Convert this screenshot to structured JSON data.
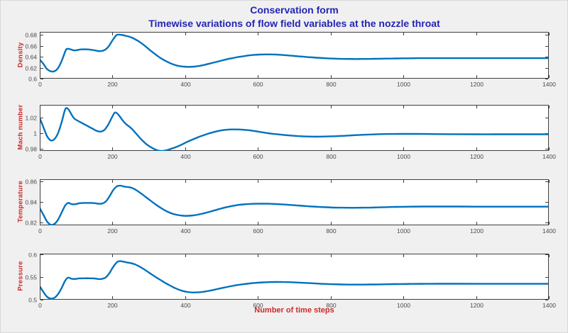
{
  "figure": {
    "title": "Conservation form",
    "subtitle": "Timewise variations of flow field variables at the nozzle throat",
    "xlabel": "Number of time steps",
    "colors": {
      "background": "#f0f0f0",
      "plot_background": "#ffffff",
      "axis": "#3f3f3f",
      "tick_label": "#4a4a4a",
      "line": "#0072bd",
      "title": "#2424b4",
      "label": "#cc2929"
    }
  },
  "chart_data": [
    {
      "type": "line",
      "ylabel": "Density",
      "x_ticks": [
        0,
        200,
        400,
        600,
        800,
        1000,
        1200,
        1400
      ],
      "y_ticks": [
        0.6,
        0.62,
        0.64,
        0.66,
        0.68
      ],
      "y_tick_labels": [
        "0.6",
        "0.62",
        "0.64",
        "0.66",
        "0.68"
      ],
      "xlim": [
        0,
        1400
      ],
      "ylim": [
        0.6,
        0.6855
      ],
      "points": [
        [
          0,
          0.635
        ],
        [
          10,
          0.627
        ],
        [
          20,
          0.6175
        ],
        [
          30,
          0.6135
        ],
        [
          40,
          0.6135
        ],
        [
          50,
          0.619
        ],
        [
          60,
          0.632
        ],
        [
          70,
          0.6495
        ],
        [
          75,
          0.6545
        ],
        [
          85,
          0.6535
        ],
        [
          95,
          0.6515
        ],
        [
          105,
          0.6525
        ],
        [
          115,
          0.6535
        ],
        [
          130,
          0.6535
        ],
        [
          145,
          0.6525
        ],
        [
          160,
          0.6505
        ],
        [
          170,
          0.6505
        ],
        [
          180,
          0.653
        ],
        [
          190,
          0.6595
        ],
        [
          200,
          0.67
        ],
        [
          210,
          0.679
        ],
        [
          215,
          0.6805
        ],
        [
          225,
          0.68
        ],
        [
          235,
          0.6785
        ],
        [
          245,
          0.677
        ],
        [
          255,
          0.6745
        ],
        [
          265,
          0.671
        ],
        [
          275,
          0.667
        ],
        [
          290,
          0.6595
        ],
        [
          305,
          0.651
        ],
        [
          320,
          0.6435
        ],
        [
          335,
          0.6365
        ],
        [
          350,
          0.631
        ],
        [
          365,
          0.6265
        ],
        [
          380,
          0.6235
        ],
        [
          395,
          0.622
        ],
        [
          410,
          0.6215
        ],
        [
          425,
          0.622
        ],
        [
          440,
          0.6235
        ],
        [
          455,
          0.6255
        ],
        [
          470,
          0.628
        ],
        [
          485,
          0.6305
        ],
        [
          500,
          0.633
        ],
        [
          515,
          0.6355
        ],
        [
          530,
          0.6375
        ],
        [
          545,
          0.6395
        ],
        [
          560,
          0.641
        ],
        [
          575,
          0.6425
        ],
        [
          590,
          0.6435
        ],
        [
          605,
          0.644
        ],
        [
          620,
          0.6443
        ],
        [
          635,
          0.6443
        ],
        [
          650,
          0.644
        ],
        [
          670,
          0.6432
        ],
        [
          690,
          0.642
        ],
        [
          710,
          0.641
        ],
        [
          730,
          0.6398
        ],
        [
          750,
          0.6388
        ],
        [
          770,
          0.638
        ],
        [
          790,
          0.6372
        ],
        [
          810,
          0.6366
        ],
        [
          830,
          0.6362
        ],
        [
          850,
          0.636
        ],
        [
          870,
          0.6359
        ],
        [
          890,
          0.636
        ],
        [
          910,
          0.6362
        ],
        [
          930,
          0.6364
        ],
        [
          950,
          0.6366
        ],
        [
          970,
          0.6368
        ],
        [
          990,
          0.637
        ],
        [
          1010,
          0.6372
        ],
        [
          1040,
          0.6374
        ],
        [
          1070,
          0.6375
        ],
        [
          1100,
          0.6375
        ],
        [
          1150,
          0.6375
        ],
        [
          1200,
          0.6374
        ],
        [
          1250,
          0.6374
        ],
        [
          1300,
          0.6374
        ],
        [
          1350,
          0.6374
        ],
        [
          1400,
          0.6374
        ]
      ]
    },
    {
      "type": "line",
      "ylabel": "Mach number",
      "x_ticks": [
        0,
        200,
        400,
        600,
        800,
        1000,
        1200,
        1400
      ],
      "y_ticks": [
        0.98,
        1,
        1.02
      ],
      "y_tick_labels": [
        "0.98",
        "1",
        "1.02"
      ],
      "xlim": [
        0,
        1400
      ],
      "ylim": [
        0.9775,
        1.0365
      ],
      "points": [
        [
          0,
          1.0195
        ],
        [
          10,
          1.008
        ],
        [
          20,
          0.9965
        ],
        [
          30,
          0.991
        ],
        [
          40,
          0.9925
        ],
        [
          50,
          1.0
        ],
        [
          60,
          1.014
        ],
        [
          68,
          1.028
        ],
        [
          73,
          1.0325
        ],
        [
          80,
          1.03
        ],
        [
          88,
          1.0235
        ],
        [
          95,
          1.019
        ],
        [
          105,
          1.016
        ],
        [
          115,
          1.0135
        ],
        [
          125,
          1.011
        ],
        [
          135,
          1.0085
        ],
        [
          145,
          1.006
        ],
        [
          155,
          1.0035
        ],
        [
          162,
          1.0025
        ],
        [
          170,
          1.0025
        ],
        [
          178,
          1.0045
        ],
        [
          188,
          1.011
        ],
        [
          198,
          1.02
        ],
        [
          205,
          1.026
        ],
        [
          210,
          1.0265
        ],
        [
          218,
          1.023
        ],
        [
          228,
          1.0165
        ],
        [
          238,
          1.0115
        ],
        [
          248,
          1.008
        ],
        [
          258,
          1.0035
        ],
        [
          270,
          0.997
        ],
        [
          282,
          0.991
        ],
        [
          295,
          0.9855
        ],
        [
          310,
          0.981
        ],
        [
          322,
          0.9785
        ],
        [
          332,
          0.9775
        ],
        [
          345,
          0.978
        ],
        [
          360,
          0.98
        ],
        [
          375,
          0.9825
        ],
        [
          390,
          0.9855
        ],
        [
          405,
          0.989
        ],
        [
          420,
          0.992
        ],
        [
          435,
          0.995
        ],
        [
          450,
          0.9975
        ],
        [
          465,
          0.9998
        ],
        [
          480,
          1.0018
        ],
        [
          495,
          1.0035
        ],
        [
          510,
          1.0045
        ],
        [
          525,
          1.005
        ],
        [
          540,
          1.005
        ],
        [
          555,
          1.0048
        ],
        [
          570,
          1.0042
        ],
        [
          590,
          1.003
        ],
        [
          610,
          1.0015
        ],
        [
          630,
          1.0
        ],
        [
          650,
          0.999
        ],
        [
          670,
          0.998
        ],
        [
          690,
          0.9972
        ],
        [
          710,
          0.9965
        ],
        [
          730,
          0.996
        ],
        [
          750,
          0.9958
        ],
        [
          770,
          0.9958
        ],
        [
          790,
          0.996
        ],
        [
          810,
          0.9963
        ],
        [
          830,
          0.9967
        ],
        [
          850,
          0.9972
        ],
        [
          870,
          0.9977
        ],
        [
          890,
          0.9982
        ],
        [
          910,
          0.9986
        ],
        [
          930,
          0.9989
        ],
        [
          950,
          0.9991
        ],
        [
          970,
          0.9992
        ],
        [
          990,
          0.9993
        ],
        [
          1020,
          0.9993
        ],
        [
          1060,
          0.9992
        ],
        [
          1100,
          0.999
        ],
        [
          1150,
          0.9989
        ],
        [
          1200,
          0.9988
        ],
        [
          1250,
          0.9988
        ],
        [
          1300,
          0.9988
        ],
        [
          1350,
          0.9988
        ],
        [
          1400,
          0.9988
        ]
      ]
    },
    {
      "type": "line",
      "ylabel": "Temperature",
      "x_ticks": [
        0,
        200,
        400,
        600,
        800,
        1000,
        1200,
        1400
      ],
      "y_ticks": [
        0.82,
        0.84,
        0.86
      ],
      "y_tick_labels": [
        "0.82",
        "0.84",
        "0.86"
      ],
      "xlim": [
        0,
        1400
      ],
      "ylim": [
        0.8172,
        0.8621
      ],
      "points": [
        [
          0,
          0.834
        ],
        [
          10,
          0.8275
        ],
        [
          20,
          0.821
        ],
        [
          30,
          0.8177
        ],
        [
          40,
          0.8185
        ],
        [
          50,
          0.8225
        ],
        [
          60,
          0.8295
        ],
        [
          70,
          0.8365
        ],
        [
          78,
          0.839
        ],
        [
          88,
          0.8378
        ],
        [
          98,
          0.8378
        ],
        [
          108,
          0.8387
        ],
        [
          120,
          0.839
        ],
        [
          135,
          0.839
        ],
        [
          150,
          0.8388
        ],
        [
          162,
          0.8382
        ],
        [
          172,
          0.8385
        ],
        [
          182,
          0.8405
        ],
        [
          192,
          0.8455
        ],
        [
          202,
          0.8515
        ],
        [
          212,
          0.8552
        ],
        [
          222,
          0.8558
        ],
        [
          232,
          0.855
        ],
        [
          242,
          0.8545
        ],
        [
          252,
          0.8538
        ],
        [
          262,
          0.8522
        ],
        [
          275,
          0.8492
        ],
        [
          290,
          0.8452
        ],
        [
          305,
          0.8412
        ],
        [
          320,
          0.8372
        ],
        [
          335,
          0.8337
        ],
        [
          350,
          0.8307
        ],
        [
          365,
          0.8285
        ],
        [
          380,
          0.8272
        ],
        [
          395,
          0.8265
        ],
        [
          410,
          0.8265
        ],
        [
          425,
          0.827
        ],
        [
          440,
          0.828
        ],
        [
          455,
          0.8292
        ],
        [
          470,
          0.8307
        ],
        [
          485,
          0.8322
        ],
        [
          500,
          0.8337
        ],
        [
          515,
          0.835
        ],
        [
          530,
          0.8361
        ],
        [
          545,
          0.837
        ],
        [
          560,
          0.8376
        ],
        [
          575,
          0.838
        ],
        [
          590,
          0.8382
        ],
        [
          610,
          0.8383
        ],
        [
          630,
          0.8382
        ],
        [
          650,
          0.8379
        ],
        [
          670,
          0.8375
        ],
        [
          690,
          0.837
        ],
        [
          710,
          0.8365
        ],
        [
          730,
          0.836
        ],
        [
          750,
          0.8355
        ],
        [
          770,
          0.8351
        ],
        [
          790,
          0.8348
        ],
        [
          810,
          0.8345
        ],
        [
          830,
          0.8344
        ],
        [
          850,
          0.8343
        ],
        [
          870,
          0.8343
        ],
        [
          890,
          0.8344
        ],
        [
          910,
          0.8345
        ],
        [
          930,
          0.8347
        ],
        [
          950,
          0.8349
        ],
        [
          970,
          0.8351
        ],
        [
          990,
          0.8352
        ],
        [
          1020,
          0.8354
        ],
        [
          1060,
          0.8355
        ],
        [
          1100,
          0.8355
        ],
        [
          1150,
          0.8355
        ],
        [
          1200,
          0.8354
        ],
        [
          1250,
          0.8354
        ],
        [
          1300,
          0.8354
        ],
        [
          1350,
          0.8354
        ],
        [
          1400,
          0.8354
        ]
      ]
    },
    {
      "type": "line",
      "ylabel": "Pressure",
      "x_ticks": [
        0,
        200,
        400,
        600,
        800,
        1000,
        1200,
        1400
      ],
      "y_ticks": [
        0.5,
        0.55,
        0.6
      ],
      "y_tick_labels": [
        "0.5",
        "0.55",
        "0.6"
      ],
      "xlim": [
        0,
        1400
      ],
      "ylim": [
        0.5,
        0.6015
      ],
      "points": [
        [
          0,
          0.5295
        ],
        [
          10,
          0.517
        ],
        [
          20,
          0.5065
        ],
        [
          30,
          0.5025
        ],
        [
          40,
          0.504
        ],
        [
          50,
          0.512
        ],
        [
          60,
          0.5255
        ],
        [
          70,
          0.542
        ],
        [
          78,
          0.5485
        ],
        [
          88,
          0.546
        ],
        [
          98,
          0.5458
        ],
        [
          108,
          0.547
        ],
        [
          120,
          0.5472
        ],
        [
          135,
          0.5472
        ],
        [
          150,
          0.5468
        ],
        [
          162,
          0.5455
        ],
        [
          172,
          0.546
        ],
        [
          182,
          0.5495
        ],
        [
          192,
          0.559
        ],
        [
          202,
          0.5725
        ],
        [
          212,
          0.5825
        ],
        [
          220,
          0.585
        ],
        [
          230,
          0.5838
        ],
        [
          240,
          0.5822
        ],
        [
          250,
          0.5808
        ],
        [
          260,
          0.5785
        ],
        [
          272,
          0.574
        ],
        [
          285,
          0.568
        ],
        [
          300,
          0.56
        ],
        [
          315,
          0.552
        ],
        [
          330,
          0.5445
        ],
        [
          345,
          0.537
        ],
        [
          360,
          0.5305
        ],
        [
          375,
          0.5245
        ],
        [
          390,
          0.52
        ],
        [
          405,
          0.5172
        ],
        [
          420,
          0.516
        ],
        [
          435,
          0.5162
        ],
        [
          450,
          0.5175
        ],
        [
          465,
          0.5195
        ],
        [
          480,
          0.522
        ],
        [
          495,
          0.5247
        ],
        [
          510,
          0.5272
        ],
        [
          525,
          0.5297
        ],
        [
          540,
          0.5318
        ],
        [
          555,
          0.5337
        ],
        [
          570,
          0.5352
        ],
        [
          585,
          0.5365
        ],
        [
          600,
          0.5375
        ],
        [
          615,
          0.5382
        ],
        [
          630,
          0.5387
        ],
        [
          650,
          0.539
        ],
        [
          670,
          0.5389
        ],
        [
          690,
          0.5385
        ],
        [
          710,
          0.5378
        ],
        [
          730,
          0.537
        ],
        [
          750,
          0.5362
        ],
        [
          770,
          0.5353
        ],
        [
          790,
          0.5346
        ],
        [
          810,
          0.534
        ],
        [
          830,
          0.5336
        ],
        [
          850,
          0.5333
        ],
        [
          870,
          0.5332
        ],
        [
          890,
          0.5333
        ],
        [
          910,
          0.5335
        ],
        [
          930,
          0.5337
        ],
        [
          950,
          0.534
        ],
        [
          970,
          0.5343
        ],
        [
          990,
          0.5345
        ],
        [
          1020,
          0.5348
        ],
        [
          1060,
          0.535
        ],
        [
          1100,
          0.5351
        ],
        [
          1150,
          0.5351
        ],
        [
          1200,
          0.535
        ],
        [
          1250,
          0.535
        ],
        [
          1300,
          0.535
        ],
        [
          1350,
          0.535
        ],
        [
          1400,
          0.535
        ]
      ]
    }
  ]
}
